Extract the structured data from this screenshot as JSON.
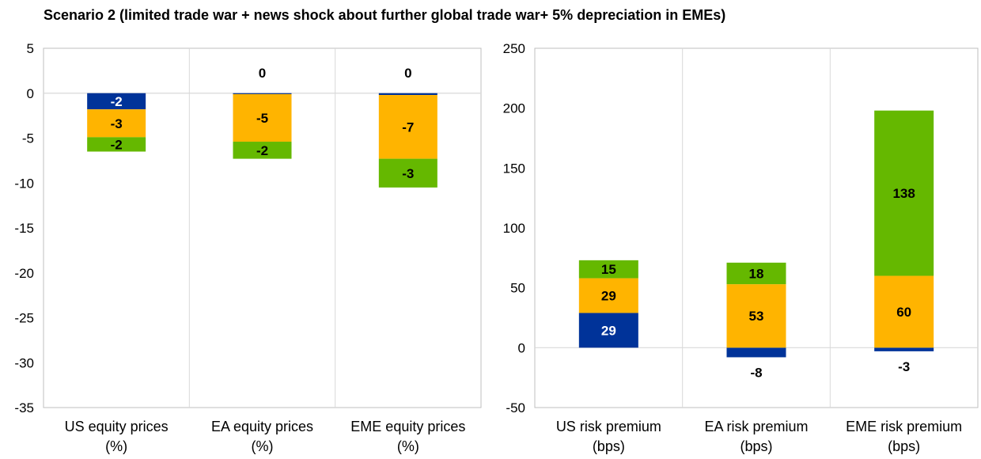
{
  "title": "Scenario 2 (limited trade war + news shock about further global trade war+ 5% depreciation in EMEs)",
  "colors": {
    "blue": "#003399",
    "orange": "#FFB400",
    "green": "#65B800",
    "grid": "#d9d9d9",
    "axis": "#bfbfbf"
  },
  "chart_data": [
    {
      "type": "bar",
      "stacked": true,
      "categories": [
        "US equity prices",
        "EA equity prices",
        "EME equity prices"
      ],
      "category_sublabels": [
        "(%)",
        "(%)",
        "(%)"
      ],
      "ylim": [
        -35,
        5
      ],
      "yticks": [
        5,
        0,
        -5,
        -10,
        -15,
        -20,
        -25,
        -30,
        -35
      ],
      "grid": true,
      "series": [
        {
          "color_key": "blue",
          "values": [
            -1.8,
            -0.1,
            -0.2
          ],
          "labels": [
            "-2",
            "0",
            "0"
          ]
        },
        {
          "color_key": "orange",
          "values": [
            -3.1,
            -5.3,
            -7.1
          ],
          "labels": [
            "-3",
            "-5",
            "-7"
          ]
        },
        {
          "color_key": "green",
          "values": [
            -1.6,
            -1.9,
            -3.2
          ],
          "labels": [
            "-2",
            "-2",
            "-3"
          ]
        }
      ]
    },
    {
      "type": "bar",
      "stacked": true,
      "categories": [
        "US risk premium",
        "EA risk premium",
        "EME risk premium"
      ],
      "category_sublabels": [
        "(bps)",
        "(bps)",
        "(bps)"
      ],
      "ylim": [
        -50,
        250
      ],
      "yticks": [
        250,
        200,
        150,
        100,
        50,
        0,
        -50
      ],
      "grid": true,
      "series": [
        {
          "color_key": "blue",
          "values": [
            29,
            -8,
            -3
          ],
          "labels": [
            "29",
            "-8",
            "-3"
          ]
        },
        {
          "color_key": "orange",
          "values": [
            29,
            53,
            60
          ],
          "labels": [
            "29",
            "53",
            "60"
          ]
        },
        {
          "color_key": "green",
          "values": [
            15,
            18,
            138
          ],
          "labels": [
            "15",
            "18",
            "138"
          ]
        }
      ]
    }
  ]
}
